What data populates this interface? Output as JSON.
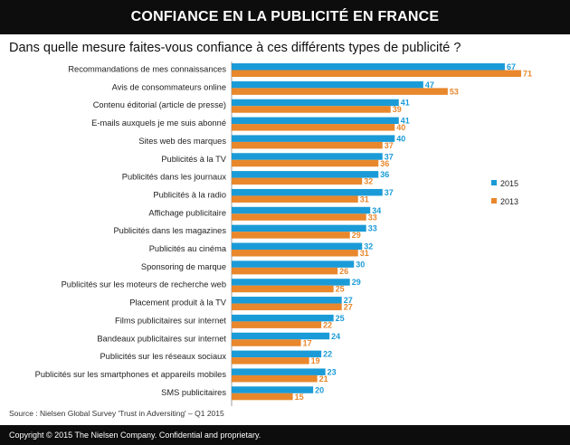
{
  "header": {
    "title": "CONFIANCE EN LA PUBLICITÉ EN FRANCE"
  },
  "question": "Dans quelle mesure faites-vous confiance à ces différents types de publicité ?",
  "source": "Source : Nielsen Global Survey 'Trust in Adversiting' – Q1 2015",
  "footer": "Copyright © 2015 The Nielsen Company. Confidential and proprietary.",
  "colors": {
    "s2015": "#1a9bd7",
    "s2013": "#e8872c"
  },
  "chart_data": {
    "type": "bar",
    "orientation": "horizontal",
    "categories": [
      "Recommandations de mes connaissances",
      "Avis de consommateurs online",
      "Contenu éditorial (article de presse)",
      "E-mails auxquels je me suis abonné",
      "Sites web des marques",
      "Publicités à la TV",
      "Publicités dans les journaux",
      "Publicités à la radio",
      "Affichage publicitaire",
      "Publicités dans les magazines",
      "Publicités au cinéma",
      "Sponsoring de marque",
      "Publicités sur les moteurs de recherche web",
      "Placement produit à la TV",
      "Films publicitaires sur internet",
      "Bandeaux publicitaires sur internet",
      "Publicités sur les réseaux sociaux",
      "Publicités sur les smartphones et appareils mobiles",
      "SMS publicitaires"
    ],
    "series": [
      {
        "name": "2015",
        "values": [
          67,
          47,
          41,
          41,
          40,
          37,
          36,
          37,
          34,
          33,
          32,
          30,
          29,
          27,
          25,
          24,
          22,
          23,
          20
        ]
      },
      {
        "name": "2013",
        "values": [
          71,
          53,
          39,
          40,
          37,
          36,
          32,
          31,
          33,
          29,
          31,
          26,
          25,
          27,
          22,
          17,
          19,
          21,
          15
        ]
      }
    ],
    "xlim": [
      0,
      71
    ],
    "legend": "right",
    "grid": false
  }
}
